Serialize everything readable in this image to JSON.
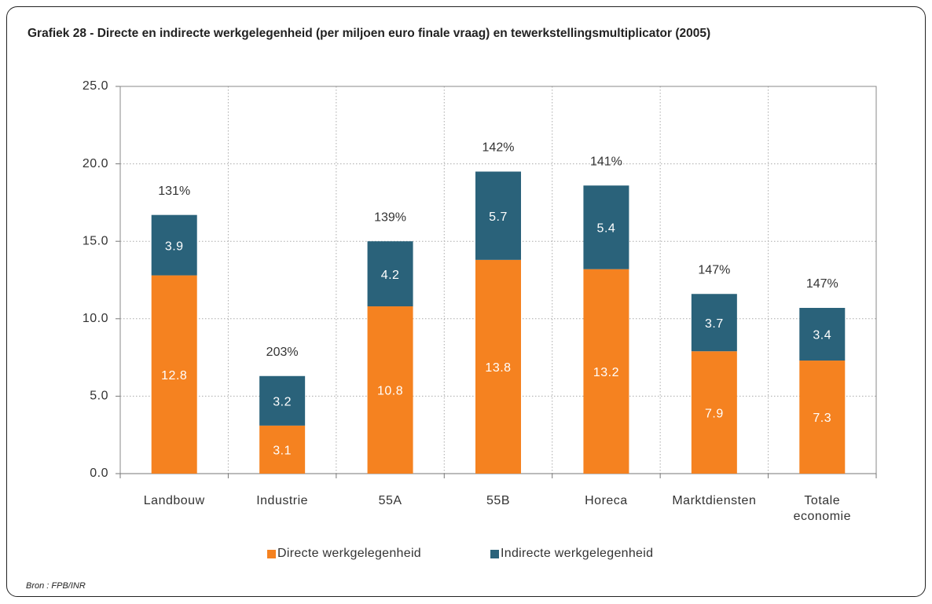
{
  "chart_data": {
    "type": "stacked_bar",
    "title": "Grafiek 28 - Directe en indirecte werkgelegenheid (per miljoen euro finale vraag) en tewerkstellingsmultiplicator (2005)",
    "categories": [
      "Landbouw",
      "Industrie",
      "55A",
      "55B",
      "Horeca",
      "Marktdiensten",
      "Totale economie"
    ],
    "series": [
      {
        "name": "Directe werkgelegenheid",
        "color": "#f58220",
        "values": [
          12.8,
          3.1,
          10.8,
          13.8,
          13.2,
          7.9,
          7.3
        ]
      },
      {
        "name": "Indirecte werkgelegenheid",
        "color": "#2a627a",
        "values": [
          3.9,
          3.2,
          4.2,
          5.7,
          5.4,
          3.7,
          3.4
        ]
      }
    ],
    "annotations": [
      "131%",
      "203%",
      "139%",
      "142%",
      "141%",
      "147%",
      "147%"
    ],
    "ylim": [
      0,
      25
    ],
    "yticks": [
      {
        "value": 0,
        "label": "0.0"
      },
      {
        "value": 5,
        "label": "5.0"
      },
      {
        "value": 10,
        "label": "10.0"
      },
      {
        "value": 15,
        "label": "15.0"
      },
      {
        "value": 20,
        "label": "20.0"
      },
      {
        "value": 25,
        "label": "25.0"
      }
    ],
    "grid": true,
    "legend": "bottom",
    "source": "Bron : FPB/INR"
  }
}
